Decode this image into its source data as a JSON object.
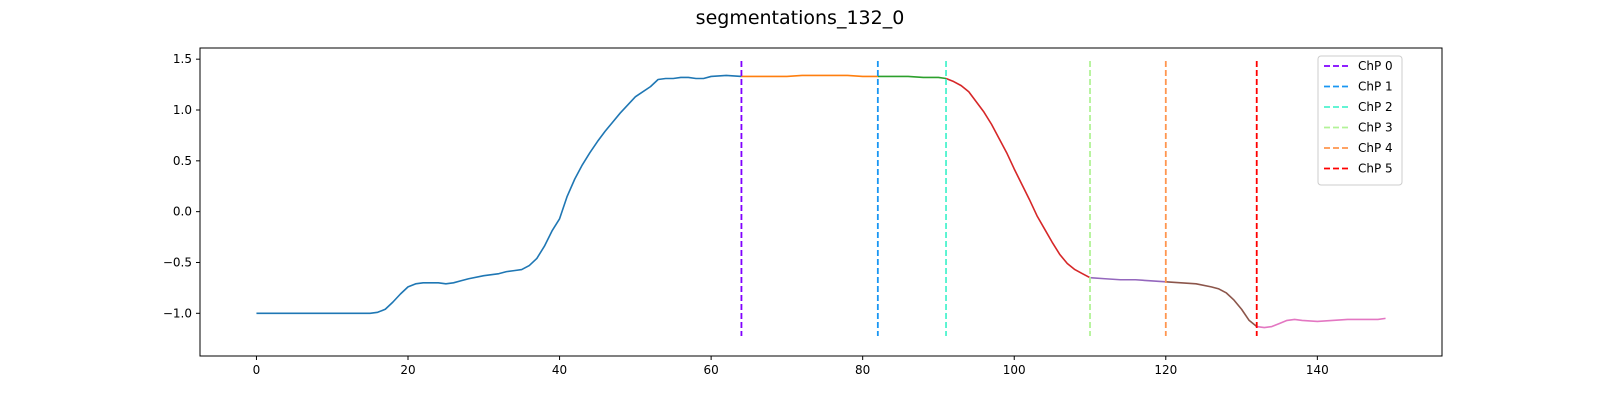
{
  "chart_data": {
    "type": "line",
    "title": "segmentations_132_0",
    "xlabel": "",
    "ylabel": "",
    "xlim": [
      -7.45,
      156.45
    ],
    "ylim": [
      -1.42,
      1.61
    ],
    "x_ticks": [
      0,
      20,
      40,
      60,
      80,
      100,
      120,
      140
    ],
    "y_ticks": [
      -1.0,
      -0.5,
      0.0,
      0.5,
      1.0,
      1.5
    ],
    "x_tick_labels": [
      "0",
      "20",
      "40",
      "60",
      "80",
      "100",
      "120",
      "140"
    ],
    "y_tick_labels": [
      "−1.0",
      "−0.5",
      "0.0",
      "0.5",
      "1.0",
      "1.5"
    ],
    "grid": false,
    "legend_position": "top-right",
    "series": [
      {
        "color": "#1f77b4",
        "x": [
          0,
          2,
          4,
          6,
          8,
          10,
          12,
          14,
          15,
          16,
          17,
          18,
          19,
          20,
          21,
          22,
          23,
          24,
          25,
          26,
          27,
          28,
          30,
          32,
          33,
          34,
          35,
          36,
          37,
          38,
          39,
          40,
          41,
          42,
          43,
          44,
          45,
          46,
          47,
          48,
          49,
          50,
          52,
          53,
          54,
          55,
          56,
          57,
          58,
          59,
          60,
          62,
          64
        ],
        "values": [
          -1.0,
          -1.0,
          -1.0,
          -1.0,
          -1.0,
          -1.0,
          -1.0,
          -1.0,
          -1.0,
          -0.99,
          -0.96,
          -0.89,
          -0.81,
          -0.74,
          -0.71,
          -0.7,
          -0.7,
          -0.7,
          -0.71,
          -0.7,
          -0.68,
          -0.66,
          -0.63,
          -0.61,
          -0.59,
          -0.58,
          -0.57,
          -0.53,
          -0.46,
          -0.34,
          -0.19,
          -0.07,
          0.15,
          0.32,
          0.46,
          0.58,
          0.69,
          0.79,
          0.88,
          0.97,
          1.05,
          1.13,
          1.23,
          1.3,
          1.31,
          1.31,
          1.32,
          1.32,
          1.31,
          1.31,
          1.33,
          1.34,
          1.33
        ]
      },
      {
        "color": "#ff7f0e",
        "x": [
          64,
          66,
          68,
          70,
          72,
          74,
          76,
          78,
          80,
          82
        ],
        "values": [
          1.33,
          1.33,
          1.33,
          1.33,
          1.34,
          1.34,
          1.34,
          1.34,
          1.33,
          1.33
        ]
      },
      {
        "color": "#2ca02c",
        "x": [
          82,
          84,
          86,
          88,
          90,
          91
        ],
        "values": [
          1.33,
          1.33,
          1.33,
          1.32,
          1.32,
          1.31
        ]
      },
      {
        "color": "#d62728",
        "x": [
          91,
          92,
          93,
          94,
          95,
          96,
          97,
          98,
          99,
          100,
          101,
          102,
          103,
          104,
          105,
          106,
          107,
          108,
          109,
          110
        ],
        "values": [
          1.31,
          1.28,
          1.24,
          1.18,
          1.08,
          0.98,
          0.86,
          0.72,
          0.58,
          0.42,
          0.27,
          0.12,
          -0.04,
          -0.17,
          -0.3,
          -0.42,
          -0.51,
          -0.57,
          -0.61,
          -0.65
        ]
      },
      {
        "color": "#9467bd",
        "x": [
          110,
          112,
          114,
          116,
          118,
          120
        ],
        "values": [
          -0.65,
          -0.66,
          -0.67,
          -0.67,
          -0.68,
          -0.69
        ]
      },
      {
        "color": "#8c564b",
        "x": [
          120,
          122,
          124,
          126,
          127,
          128,
          129,
          130,
          131,
          132
        ],
        "values": [
          -0.69,
          -0.7,
          -0.71,
          -0.74,
          -0.76,
          -0.8,
          -0.87,
          -0.96,
          -1.07,
          -1.13
        ]
      },
      {
        "color": "#e377c2",
        "x": [
          132,
          133,
          134,
          135,
          136,
          137,
          138,
          140,
          142,
          144,
          146,
          148,
          149
        ],
        "values": [
          -1.13,
          -1.14,
          -1.13,
          -1.1,
          -1.07,
          -1.06,
          -1.07,
          -1.08,
          -1.07,
          -1.06,
          -1.06,
          -1.06,
          -1.05
        ]
      }
    ],
    "change_points": [
      {
        "name": "ChP 0",
        "x": 64,
        "color": "#8000ff"
      },
      {
        "name": "ChP 1",
        "x": 82,
        "color": "#1996f3"
      },
      {
        "name": "ChP 2",
        "x": 91,
        "color": "#4df3ce"
      },
      {
        "name": "ChP 3",
        "x": 110,
        "color": "#b2f396"
      },
      {
        "name": "ChP 4",
        "x": 120,
        "color": "#ff964f"
      },
      {
        "name": "ChP 5",
        "x": 132,
        "color": "#ff0000"
      }
    ]
  }
}
